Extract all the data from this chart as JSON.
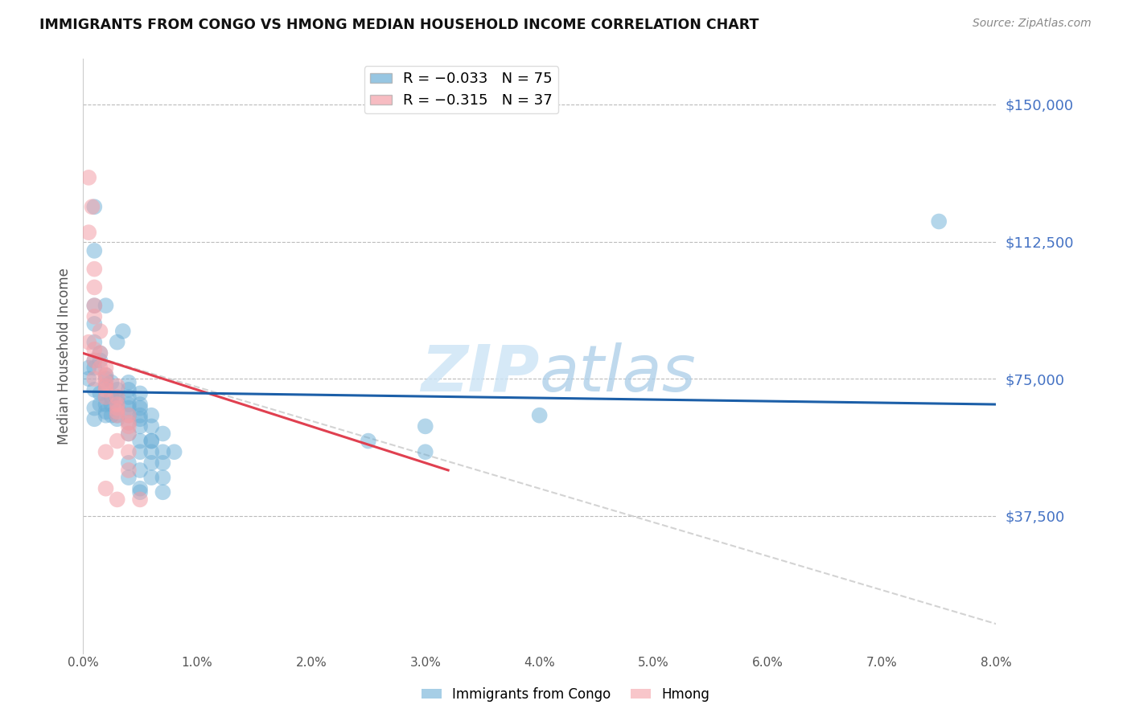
{
  "title": "IMMIGRANTS FROM CONGO VS HMONG MEDIAN HOUSEHOLD INCOME CORRELATION CHART",
  "source": "Source: ZipAtlas.com",
  "ylabel": "Median Household Income",
  "ytick_labels": [
    "$150,000",
    "$112,500",
    "$75,000",
    "$37,500"
  ],
  "ytick_values": [
    150000,
    112500,
    75000,
    37500
  ],
  "ylim": [
    0,
    162500
  ],
  "xlim": [
    0.0,
    0.08
  ],
  "legend_congo": "R = −0.033   N = 75",
  "legend_hmong": "R = −0.315   N = 37",
  "congo_color": "#6baed6",
  "hmong_color": "#f4a0a8",
  "trendline_congo_color": "#1c5fa8",
  "trendline_hmong_color": "#e04050",
  "trendline_hmong_ext_color": "#cccccc",
  "watermark_zip": "ZIP",
  "watermark_atlas": "atlas",
  "congo_trendline": [
    [
      0.0,
      71500
    ],
    [
      0.08,
      68000
    ]
  ],
  "hmong_trendline": [
    [
      0.0,
      82000
    ],
    [
      0.032,
      50000
    ]
  ],
  "hmong_trendline_ext": [
    [
      0.0,
      82000
    ],
    [
      0.08,
      8000
    ]
  ],
  "congo_scatter": [
    [
      0.0005,
      75000
    ],
    [
      0.001,
      122000
    ],
    [
      0.001,
      110000
    ],
    [
      0.001,
      95000
    ],
    [
      0.001,
      90000
    ],
    [
      0.001,
      85000
    ],
    [
      0.0015,
      82000
    ],
    [
      0.001,
      80000
    ],
    [
      0.0005,
      78000
    ],
    [
      0.002,
      95000
    ],
    [
      0.0015,
      80000
    ],
    [
      0.001,
      78000
    ],
    [
      0.002,
      76000
    ],
    [
      0.002,
      75000
    ],
    [
      0.0025,
      74000
    ],
    [
      0.002,
      73000
    ],
    [
      0.001,
      72000
    ],
    [
      0.0015,
      71000
    ],
    [
      0.002,
      70000
    ],
    [
      0.0025,
      70000
    ],
    [
      0.003,
      69000
    ],
    [
      0.0025,
      68000
    ],
    [
      0.002,
      68000
    ],
    [
      0.0015,
      68000
    ],
    [
      0.001,
      67000
    ],
    [
      0.003,
      67000
    ],
    [
      0.002,
      66000
    ],
    [
      0.003,
      65000
    ],
    [
      0.0025,
      65000
    ],
    [
      0.002,
      65000
    ],
    [
      0.001,
      64000
    ],
    [
      0.003,
      64000
    ],
    [
      0.004,
      74000
    ],
    [
      0.004,
      72000
    ],
    [
      0.003,
      72000
    ],
    [
      0.004,
      70000
    ],
    [
      0.003,
      70000
    ],
    [
      0.004,
      68000
    ],
    [
      0.005,
      71000
    ],
    [
      0.004,
      67000
    ],
    [
      0.005,
      68000
    ],
    [
      0.004,
      65000
    ],
    [
      0.005,
      67000
    ],
    [
      0.005,
      65000
    ],
    [
      0.004,
      63000
    ],
    [
      0.005,
      64000
    ],
    [
      0.006,
      65000
    ],
    [
      0.005,
      62000
    ],
    [
      0.004,
      60000
    ],
    [
      0.005,
      58000
    ],
    [
      0.006,
      62000
    ],
    [
      0.005,
      55000
    ],
    [
      0.004,
      52000
    ],
    [
      0.006,
      58000
    ],
    [
      0.005,
      50000
    ],
    [
      0.006,
      55000
    ],
    [
      0.004,
      48000
    ],
    [
      0.005,
      45000
    ],
    [
      0.006,
      52000
    ],
    [
      0.005,
      44000
    ],
    [
      0.007,
      60000
    ],
    [
      0.006,
      58000
    ],
    [
      0.007,
      55000
    ],
    [
      0.006,
      48000
    ],
    [
      0.007,
      52000
    ],
    [
      0.007,
      48000
    ],
    [
      0.008,
      55000
    ],
    [
      0.007,
      44000
    ],
    [
      0.0035,
      88000
    ],
    [
      0.003,
      85000
    ],
    [
      0.075,
      118000
    ],
    [
      0.04,
      65000
    ],
    [
      0.03,
      55000
    ],
    [
      0.025,
      58000
    ],
    [
      0.03,
      62000
    ]
  ],
  "hmong_scatter": [
    [
      0.0005,
      130000
    ],
    [
      0.0008,
      122000
    ],
    [
      0.001,
      105000
    ],
    [
      0.0005,
      115000
    ],
    [
      0.001,
      100000
    ],
    [
      0.001,
      95000
    ],
    [
      0.001,
      92000
    ],
    [
      0.0015,
      88000
    ],
    [
      0.0005,
      85000
    ],
    [
      0.001,
      83000
    ],
    [
      0.0015,
      82000
    ],
    [
      0.001,
      80000
    ],
    [
      0.0015,
      78000
    ],
    [
      0.002,
      78000
    ],
    [
      0.002,
      76000
    ],
    [
      0.001,
      75000
    ],
    [
      0.002,
      74000
    ],
    [
      0.002,
      73000
    ],
    [
      0.003,
      73000
    ],
    [
      0.002,
      72000
    ],
    [
      0.002,
      70000
    ],
    [
      0.003,
      70000
    ],
    [
      0.003,
      68000
    ],
    [
      0.003,
      67000
    ],
    [
      0.003,
      66000
    ],
    [
      0.004,
      65000
    ],
    [
      0.003,
      65000
    ],
    [
      0.004,
      63000
    ],
    [
      0.004,
      62000
    ],
    [
      0.004,
      60000
    ],
    [
      0.003,
      58000
    ],
    [
      0.004,
      55000
    ],
    [
      0.002,
      45000
    ],
    [
      0.004,
      50000
    ],
    [
      0.003,
      42000
    ],
    [
      0.005,
      42000
    ],
    [
      0.002,
      55000
    ]
  ]
}
